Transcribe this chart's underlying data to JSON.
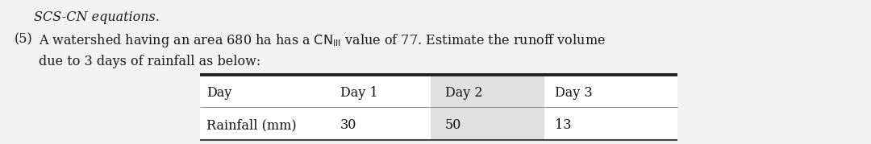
{
  "top_text": "SCS-CN equations.",
  "problem_number": "(5)",
  "line1": "A watershed having an area 680 ha has a $\\mathrm{CN_{III}}$ value of 77. Estimate the runoff volume",
  "line2": "due to 3 days of rainfall as below:",
  "table_headers": [
    "Day",
    "Day 1",
    "Day 2",
    "Day 3"
  ],
  "table_row_label": "Rainfall (mm)",
  "table_row_values": [
    "30",
    "50",
    "13"
  ],
  "bg_color": "#f2f2f2",
  "table_cell_shade": "#e0e0e0",
  "font_size": 11.5,
  "table_font_size": 11.5
}
